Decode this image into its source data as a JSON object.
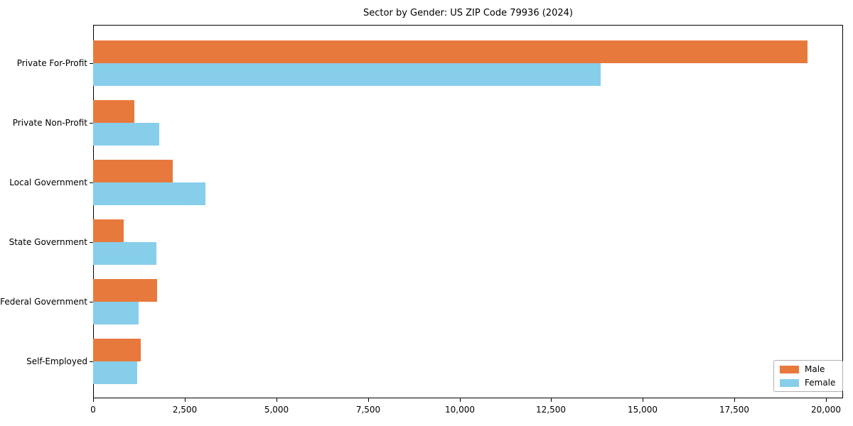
{
  "figure": {
    "background": "#ffffff"
  },
  "chart_data": {
    "type": "bar",
    "orientation": "horizontal",
    "title": "Sector by Gender: US ZIP Code 79936 (2024)",
    "categories": [
      "Private For-Profit",
      "Private Non-Profit",
      "Local Government",
      "State Government",
      "Federal Government",
      "Self-Employed"
    ],
    "series": [
      {
        "name": "Male",
        "color": "#E8793C",
        "values": [
          19500,
          1130,
          2170,
          830,
          1750,
          1300
        ]
      },
      {
        "name": "Female",
        "color": "#87CEEB",
        "values": [
          13850,
          1800,
          3070,
          1730,
          1240,
          1200
        ]
      }
    ],
    "xlabel": "",
    "ylabel": "",
    "xlim": [
      0,
      20000
    ],
    "xticks": [
      0,
      2500,
      5000,
      7500,
      10000,
      12500,
      15000,
      17500,
      20000
    ],
    "xtick_labels": [
      "0",
      "2,500",
      "5,000",
      "7,500",
      "10,000",
      "12,500",
      "15,000",
      "17,500",
      "20,000"
    ],
    "grid": false,
    "legend": {
      "position": "lower right",
      "entries": [
        "Male",
        "Female"
      ]
    },
    "axis_color": "#000000"
  }
}
